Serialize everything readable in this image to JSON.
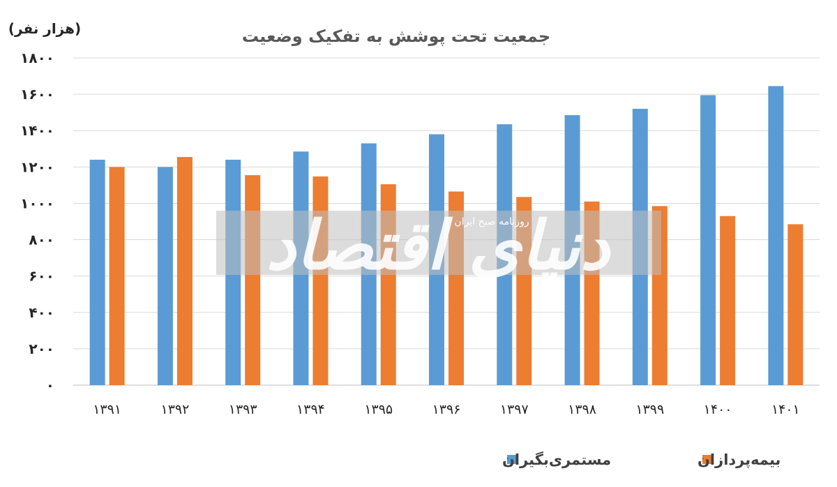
{
  "chart_data": {
    "type": "bar",
    "title": "جمعیت تحت پوشش به تفکیک وضعیت",
    "ylabel": "(هزار نفر)",
    "xlabel": "",
    "ylim": [
      0,
      1800
    ],
    "yticks": [
      "۰",
      "۲۰۰",
      "۴۰۰",
      "۶۰۰",
      "۸۰۰",
      "۱۰۰۰",
      "۱۲۰۰",
      "۱۴۰۰",
      "۱۶۰۰",
      "۱۸۰۰"
    ],
    "categories": [
      "۱۳۹۱",
      "۱۳۹۲",
      "۱۳۹۳",
      "۱۳۹۴",
      "۱۳۹۵",
      "۱۳۹۶",
      "۱۳۹۷",
      "۱۳۹۸",
      "۱۳۹۹",
      "۱۴۰۰",
      "۱۴۰۱"
    ],
    "series": [
      {
        "name": "مستمری‌بگیران",
        "color": "#5b9bd5",
        "values": [
          1240,
          1200,
          1240,
          1285,
          1330,
          1380,
          1435,
          1485,
          1520,
          1595,
          1645
        ]
      },
      {
        "name": "بیمه‌پردازان",
        "color": "#ed7d31",
        "values": [
          1200,
          1255,
          1155,
          1148,
          1105,
          1065,
          1035,
          1010,
          985,
          930,
          885
        ]
      }
    ],
    "grid": true,
    "legend_position": "bottom"
  },
  "watermark": {
    "text": "دنیای اقتصاد",
    "subtext": "روزنامه صبح ایران"
  }
}
